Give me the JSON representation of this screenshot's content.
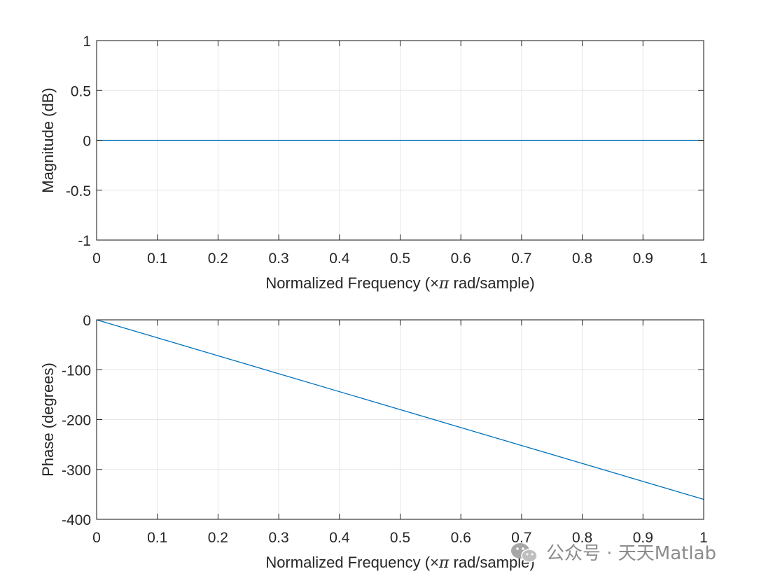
{
  "chart_data": [
    {
      "type": "line",
      "name": "magnitude-plot",
      "xlabel_prefix": "Normalized Frequency  (",
      "xlabel_times": "×",
      "xlabel_pi": "π",
      "xlabel_suffix": " rad/sample)",
      "ylabel": "Magnitude (dB)",
      "xlim": [
        0,
        1
      ],
      "ylim": [
        -1,
        1
      ],
      "xticks": [
        0,
        0.1,
        0.2,
        0.3,
        0.4,
        0.5,
        0.6,
        0.7,
        0.8,
        0.9,
        1
      ],
      "xtick_labels": [
        "0",
        "0.1",
        "0.2",
        "0.3",
        "0.4",
        "0.5",
        "0.6",
        "0.7",
        "0.8",
        "0.9",
        "1"
      ],
      "yticks": [
        -1,
        -0.5,
        0,
        0.5,
        1
      ],
      "ytick_labels": [
        "-1",
        "-0.5",
        "0",
        "0.5",
        "1"
      ],
      "grid": true,
      "series": [
        {
          "name": "magnitude",
          "x": [
            0,
            1
          ],
          "y": [
            0,
            0
          ],
          "color": "#0072BD"
        }
      ]
    },
    {
      "type": "line",
      "name": "phase-plot",
      "xlabel_prefix": "Normalized Frequency  (",
      "xlabel_times": "×",
      "xlabel_pi": "π",
      "xlabel_suffix": " rad/sample)",
      "ylabel": "Phase (degrees)",
      "xlim": [
        0,
        1
      ],
      "ylim": [
        -400,
        0
      ],
      "xticks": [
        0,
        0.1,
        0.2,
        0.3,
        0.4,
        0.5,
        0.6,
        0.7,
        0.8,
        0.9,
        1
      ],
      "xtick_labels": [
        "0",
        "0.1",
        "0.2",
        "0.3",
        "0.4",
        "0.5",
        "0.6",
        "0.7",
        "0.8",
        "0.9",
        "1"
      ],
      "yticks": [
        -400,
        -300,
        -200,
        -100,
        0
      ],
      "ytick_labels": [
        "-400",
        "-300",
        "-200",
        "-100",
        "0"
      ],
      "grid": true,
      "series": [
        {
          "name": "phase",
          "x": [
            0,
            1
          ],
          "y": [
            0,
            -360
          ],
          "color": "#0072BD"
        }
      ]
    }
  ],
  "watermark": {
    "text": "公众号 · 天天Matlab",
    "icon": "wechat-icon"
  },
  "colors": {
    "axis": "#262626",
    "grid": "#e6e6e6",
    "line": "#0072BD",
    "background": "#ffffff"
  }
}
